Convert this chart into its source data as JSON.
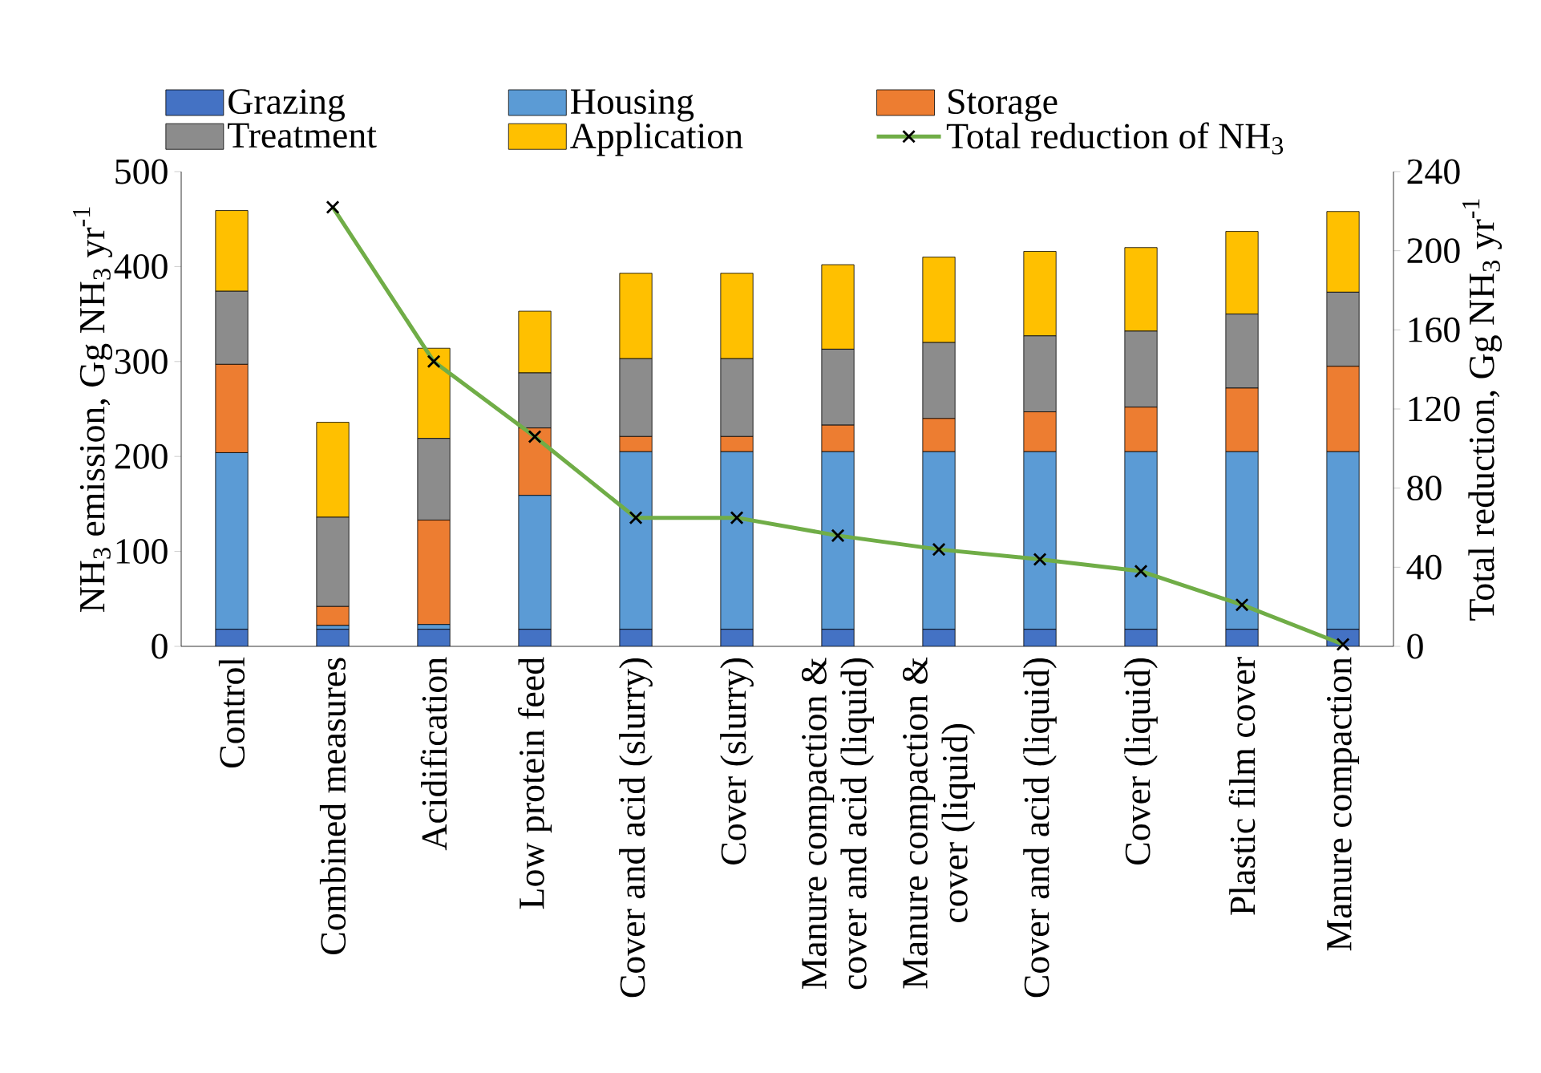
{
  "chart_data": {
    "type": "bar",
    "stacked": true,
    "ylabel": "NH$_{3}$ emission, Gg NH$_{3}$ yr$^{-1}$",
    "y2label": "Total reduction, Gg NH$_{3}$ yr$^{-1}$",
    "categories": [
      "Control",
      "Combined measures",
      "Acidification",
      "Low protein feed",
      "Cover and acid (slurry)",
      "Cover (slurry)",
      "Manure compaction & cover and acid (liquid)",
      "Manure compaction & cover (liquid)",
      "Cover and acid (liquid)",
      "Cover (liquid)",
      "Plastic film cover",
      "Manure compaction"
    ],
    "series": [
      {
        "name": "Grazing",
        "color": "#4472c4",
        "values": [
          18,
          18,
          18,
          18,
          18,
          18,
          18,
          18,
          18,
          18,
          18,
          18
        ]
      },
      {
        "name": "Housing",
        "color": "#5b9bd5",
        "values": [
          186,
          4,
          5,
          141,
          187,
          187,
          187,
          187,
          187,
          187,
          187,
          187
        ]
      },
      {
        "name": "Storage",
        "color": "#ed7d31",
        "values": [
          93,
          20,
          110,
          71,
          16,
          16,
          28,
          35,
          42,
          47,
          67,
          90
        ]
      },
      {
        "name": "Treatment",
        "color": "#8c8c8c",
        "values": [
          77,
          94,
          86,
          58,
          82,
          82,
          80,
          80,
          80,
          80,
          78,
          78
        ]
      },
      {
        "name": "Application",
        "color": "#ffc000",
        "values": [
          85,
          100,
          95,
          65,
          90,
          90,
          89,
          90,
          89,
          88,
          87,
          85
        ]
      },
      {
        "name": "Total reduction of NH$_{3}$",
        "type": "line",
        "axis": "y2",
        "marker": "cross",
        "color": "#70ad47",
        "values": [
          null,
          222,
          144,
          106,
          65,
          65,
          56,
          49,
          44,
          38,
          21,
          1
        ]
      }
    ],
    "ylim": [
      0,
      500
    ],
    "yticks": [
      0,
      100,
      200,
      300,
      400,
      500
    ],
    "y2lim": [
      0,
      240
    ],
    "y2ticks": [
      0,
      40,
      80,
      120,
      160,
      200,
      240
    ],
    "grid": false,
    "legend": "top"
  }
}
